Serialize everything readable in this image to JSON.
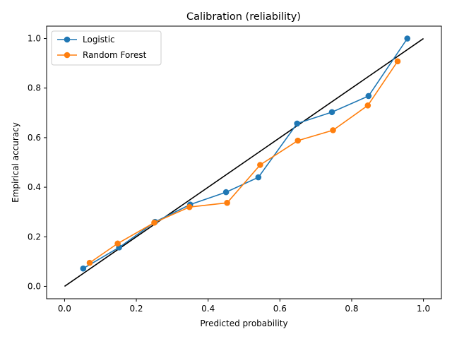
{
  "chart_data": {
    "type": "line",
    "title": "Calibration (reliability)",
    "xlabel": "Predicted probability",
    "ylabel": "Empirical accuracy",
    "xlim": [
      -0.05,
      1.05
    ],
    "ylim": [
      -0.05,
      1.05
    ],
    "xticks": [
      "0.0",
      "0.2",
      "0.4",
      "0.6",
      "0.8",
      "1.0"
    ],
    "yticks": [
      "0.0",
      "0.2",
      "0.4",
      "0.6",
      "0.8",
      "1.0"
    ],
    "grid": false,
    "legend_position": "top-left",
    "reference_line": {
      "x": [
        0,
        1
      ],
      "y": [
        0,
        1
      ],
      "color": "#000000"
    },
    "series": [
      {
        "name": "Logistic",
        "color": "#1f77b4",
        "x": [
          0.052,
          0.152,
          0.252,
          0.35,
          0.45,
          0.54,
          0.648,
          0.745,
          0.847,
          0.955
        ],
        "y": [
          0.072,
          0.157,
          0.26,
          0.33,
          0.38,
          0.44,
          0.657,
          0.703,
          0.768,
          1.0
        ]
      },
      {
        "name": "Random Forest",
        "color": "#ff7f0e",
        "x": [
          0.07,
          0.148,
          0.25,
          0.348,
          0.453,
          0.545,
          0.65,
          0.748,
          0.845,
          0.928
        ],
        "y": [
          0.095,
          0.173,
          0.257,
          0.32,
          0.337,
          0.49,
          0.588,
          0.63,
          0.73,
          0.908
        ]
      }
    ]
  }
}
